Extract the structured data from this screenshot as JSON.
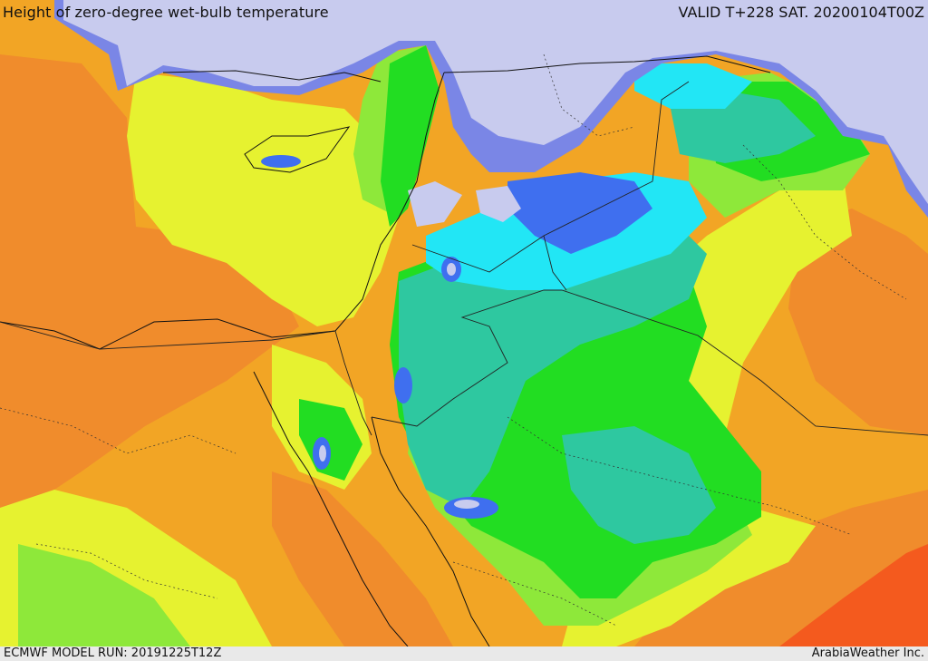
{
  "header": {
    "title": "Height of zero-degree wet-bulb temperature",
    "valid": "VALID T+228 SAT. 20200104T00Z"
  },
  "footer": {
    "model_run": "ECMWF MODEL RUN: 20191225T12Z",
    "credit": "ArabiaWeather Inc."
  },
  "colors": {
    "snow": "#c8cbee",
    "purple": "#7a86e6",
    "blue": "#3f6fef",
    "cyan": "#22e6f5",
    "teal": "#2ec8a0",
    "green": "#22dd22",
    "light_green": "#8ee83a",
    "yellow": "#e6f230",
    "orange_light": "#f2b51e",
    "orange": "#f08c2c",
    "red_orange": "#f45a1e"
  }
}
